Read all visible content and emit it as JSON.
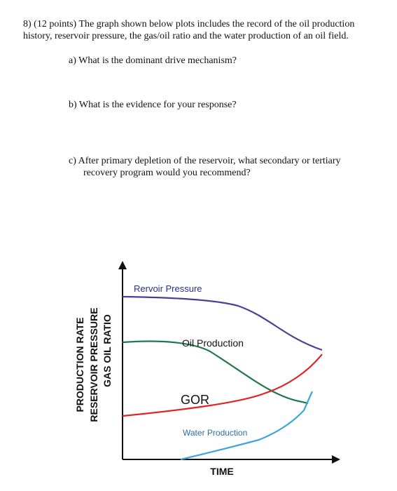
{
  "question": {
    "line1": "8) (12 points) The graph shown below plots includes the record of the oil production",
    "line2": "history, reservoir pressure, the gas/oil ratio and the water production of an oil field."
  },
  "parts": {
    "a": "a) What is the dominant drive mechanism?",
    "b": "b) What is the evidence for your response?",
    "c_line1": "c) After primary depletion of the reservoir, what secondary or tertiary",
    "c_line2": "recovery program would you recommend?"
  },
  "graph": {
    "y_axis_labels": [
      "PRODUCTION RATE",
      "RESERVOIR PRESSURE",
      "GAS OIL RATIO"
    ],
    "x_axis_label": "TIME",
    "curves": {
      "pressure": "Rervoir Pressure",
      "oil": "Oil Production",
      "gor": "GOR",
      "water": "Water Production"
    },
    "colors": {
      "pressure": "#4b3f95",
      "oil": "#1f7a4a",
      "gor": "#e02424",
      "water": "#3aa6dd",
      "axis": "#111111"
    }
  }
}
